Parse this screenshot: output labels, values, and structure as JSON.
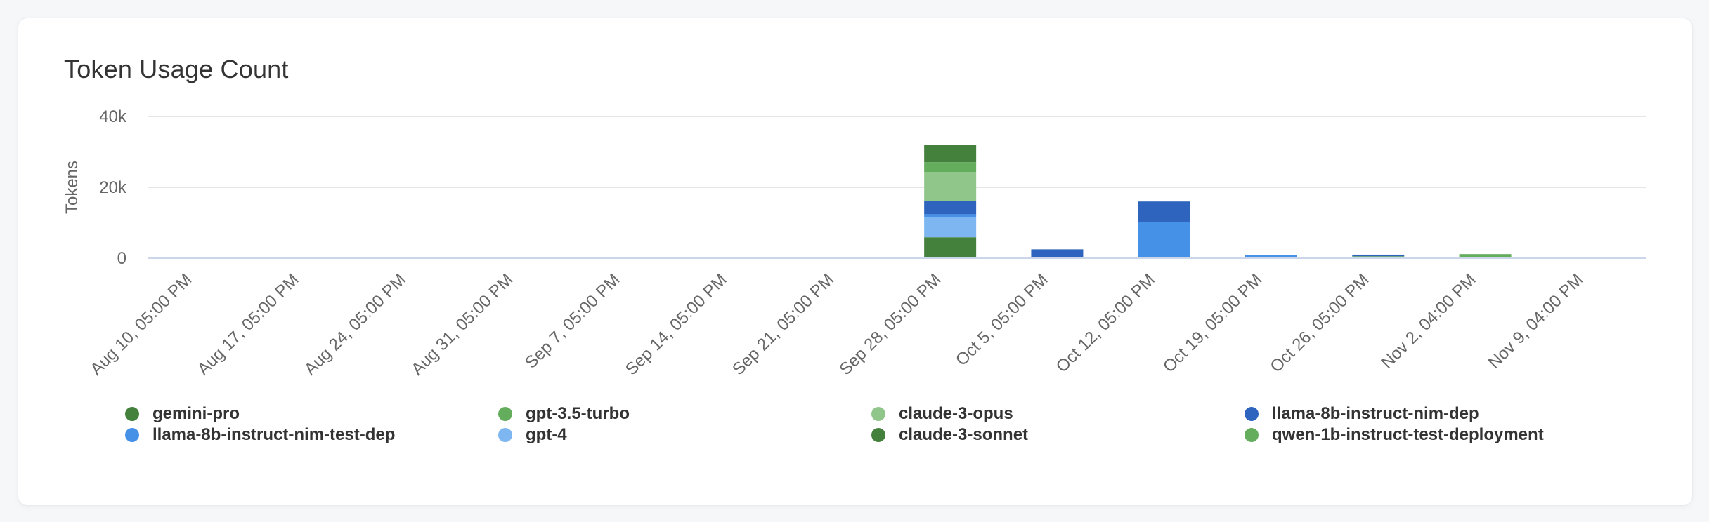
{
  "card": {
    "name": "Token Usage Count panel"
  },
  "chart_data": {
    "type": "bar",
    "stacked": true,
    "title": "Token Usage Count",
    "xlabel": "",
    "ylabel": "Tokens",
    "ylim": [
      0,
      40000
    ],
    "y_ticks": [
      0,
      20000,
      40000
    ],
    "y_tick_labels": [
      "0",
      "20k",
      "40k"
    ],
    "grid": true,
    "legend_position": "bottom",
    "stack_order": "first-series-on-top",
    "categories": [
      "Aug 10, 05:00 PM",
      "Aug 17, 05:00 PM",
      "Aug 24, 05:00 PM",
      "Aug 31, 05:00 PM",
      "Sep 7, 05:00 PM",
      "Sep 14, 05:00 PM",
      "Sep 21, 05:00 PM",
      "Sep 28, 05:00 PM",
      "Oct 5, 05:00 PM",
      "Oct 12, 05:00 PM",
      "Oct 19, 05:00 PM",
      "Oct 26, 05:00 PM",
      "Nov 2, 04:00 PM",
      "Nov 9, 04:00 PM"
    ],
    "series": [
      {
        "name": "gemini-pro",
        "color": "#44813C",
        "values": [
          0,
          0,
          0,
          0,
          0,
          0,
          0,
          4800,
          0,
          0,
          0,
          0,
          0,
          0
        ]
      },
      {
        "name": "gpt-3.5-turbo",
        "color": "#63AD5D",
        "values": [
          0,
          0,
          0,
          0,
          0,
          0,
          0,
          2800,
          0,
          0,
          0,
          0,
          0,
          0
        ]
      },
      {
        "name": "claude-3-opus",
        "color": "#90C689",
        "values": [
          0,
          0,
          0,
          0,
          0,
          0,
          0,
          8200,
          0,
          0,
          0,
          0,
          0,
          0
        ]
      },
      {
        "name": "llama-8b-instruct-nim-dep",
        "color": "#2E64BE",
        "values": [
          0,
          0,
          0,
          0,
          0,
          0,
          0,
          3700,
          2500,
          5700,
          0,
          450,
          0,
          0
        ]
      },
      {
        "name": "llama-8b-instruct-nim-test-dep",
        "color": "#4591E8",
        "values": [
          0,
          0,
          0,
          0,
          0,
          0,
          0,
          900,
          0,
          10300,
          950,
          0,
          0,
          0
        ]
      },
      {
        "name": "gpt-4",
        "color": "#7DB6F0",
        "values": [
          0,
          0,
          0,
          0,
          0,
          0,
          0,
          5600,
          0,
          0,
          0,
          0,
          0,
          0
        ]
      },
      {
        "name": "claude-3-sonnet",
        "color": "#44813C",
        "values": [
          0,
          0,
          0,
          0,
          0,
          0,
          0,
          5900,
          0,
          0,
          0,
          0,
          0,
          0
        ]
      },
      {
        "name": "qwen-1b-instruct-test-deployment",
        "color": "#63AD5D",
        "values": [
          0,
          0,
          0,
          0,
          0,
          0,
          0,
          0,
          0,
          0,
          0,
          550,
          1150,
          0
        ]
      }
    ]
  },
  "colors": {
    "page_background": "#F6F7F9",
    "card_background": "#FFFFFF",
    "card_border": "#E9EBEF",
    "gridline": "#E6E6E6",
    "axis_line": "#CCD6EB",
    "tick_label": "#666666",
    "axis_title": "#666666",
    "title_text": "#333333",
    "legend_text": "#333333"
  }
}
